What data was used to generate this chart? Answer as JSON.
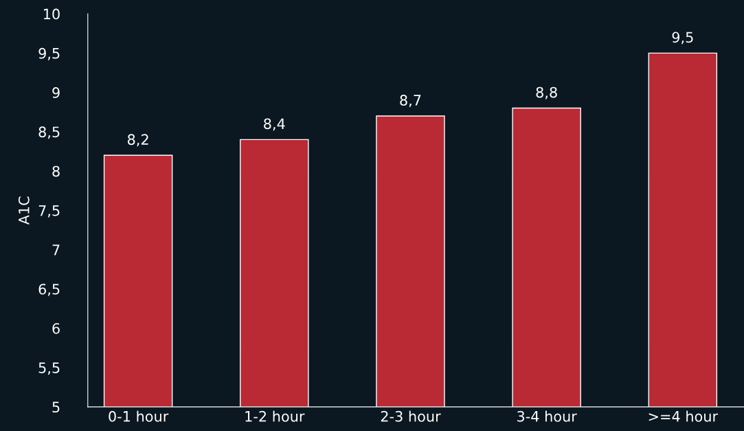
{
  "chart_data": {
    "type": "bar",
    "ylabel": "A1C",
    "categories": [
      "0-1 hour",
      "1-2 hour",
      "2-3 hour",
      "3-4 hour",
      ">=4 hour"
    ],
    "values": [
      8.2,
      8.4,
      8.7,
      8.8,
      9.5
    ],
    "value_labels": [
      "8,2",
      "8,4",
      "8,7",
      "8,8",
      "9,5"
    ],
    "color": "#b92a35",
    "ylim": [
      5,
      10
    ],
    "yticks": [
      5,
      {
        "value": 5.5,
        "label": "5,5"
      },
      6,
      {
        "value": 6.5,
        "label": "6,5"
      },
      7,
      {
        "value": 7.5,
        "label": "7,5"
      },
      8,
      {
        "value": 8.5,
        "label": "8,5"
      },
      9,
      {
        "value": 9.5,
        "label": "9,5"
      },
      10
    ],
    "grid": false,
    "legend": false
  }
}
